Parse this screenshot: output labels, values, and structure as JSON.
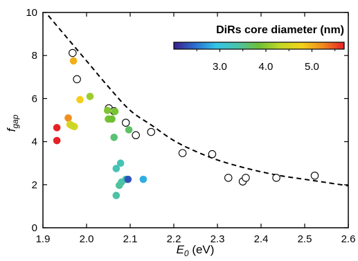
{
  "chart_data": {
    "type": "scatter",
    "x_axis": {
      "label_symbol": "E",
      "label_subscript": "0",
      "label_unit": " (eV)",
      "range": [
        1.9,
        2.6
      ],
      "ticks": [
        1.9,
        2.0,
        2.1,
        2.2,
        2.3,
        2.4,
        2.5,
        2.6
      ],
      "tick_labels": [
        "1.9",
        "2.0",
        "2.1",
        "2.2",
        "2.3",
        "2.4",
        "2.5",
        "2.6"
      ]
    },
    "y_axis": {
      "label_symbol": "f",
      "label_subscript": "gap",
      "range": [
        0,
        10
      ],
      "ticks": [
        0,
        2,
        4,
        6,
        8,
        10
      ],
      "tick_labels": [
        "0",
        "2",
        "4",
        "6",
        "8",
        "10"
      ]
    },
    "colorbar": {
      "title": "DiRs core diameter (nm)",
      "range": [
        2.0,
        5.7
      ],
      "ticks": [
        3.0,
        4.0,
        5.0
      ],
      "tick_labels": [
        "3.0",
        "4.0",
        "5.0"
      ],
      "colormap": [
        "#3b1f8a",
        "#2c6fd1",
        "#33c5e6",
        "#4bc3a8",
        "#6ec035",
        "#c2d826",
        "#f4d21a",
        "#f08a1e",
        "#e52126"
      ]
    },
    "fit_curve": [
      [
        1.9,
        10.15
      ],
      [
        1.95,
        8.95
      ],
      [
        2.0,
        7.75
      ],
      [
        2.05,
        6.55
      ],
      [
        2.1,
        5.45
      ],
      [
        2.15,
        4.75
      ],
      [
        2.2,
        4.05
      ],
      [
        2.25,
        3.55
      ],
      [
        2.3,
        3.15
      ],
      [
        2.35,
        2.85
      ],
      [
        2.4,
        2.6
      ],
      [
        2.45,
        2.4
      ],
      [
        2.5,
        2.25
      ],
      [
        2.55,
        2.1
      ],
      [
        2.6,
        1.95
      ]
    ],
    "open_markers": [
      [
        1.968,
        8.12
      ],
      [
        1.978,
        6.9
      ],
      [
        2.051,
        5.55
      ],
      [
        2.063,
        5.42
      ],
      [
        2.09,
        4.88
      ],
      [
        2.113,
        4.3
      ],
      [
        2.148,
        4.45
      ],
      [
        2.22,
        3.47
      ],
      [
        2.288,
        3.42
      ],
      [
        2.325,
        2.32
      ],
      [
        2.358,
        2.15
      ],
      [
        2.365,
        2.32
      ],
      [
        2.435,
        2.32
      ],
      [
        2.523,
        2.42
      ]
    ],
    "filled_markers": [
      {
        "x": 1.932,
        "y": 4.65,
        "size": 5.7
      },
      {
        "x": 1.932,
        "y": 4.05,
        "size": 5.7
      },
      {
        "x": 1.958,
        "y": 5.1,
        "size": 5.2
      },
      {
        "x": 1.97,
        "y": 7.75,
        "size": 5.0
      },
      {
        "x": 1.962,
        "y": 4.8,
        "size": 4.6
      },
      {
        "x": 1.972,
        "y": 4.7,
        "size": 4.5
      },
      {
        "x": 1.966,
        "y": 4.75,
        "size": 4.4
      },
      {
        "x": 1.985,
        "y": 5.95,
        "size": 4.8
      },
      {
        "x": 2.008,
        "y": 6.1,
        "size": 4.1
      },
      {
        "x": 2.048,
        "y": 5.45,
        "size": 3.95
      },
      {
        "x": 2.05,
        "y": 5.05,
        "size": 3.9
      },
      {
        "x": 2.058,
        "y": 5.05,
        "size": 3.85
      },
      {
        "x": 2.065,
        "y": 5.4,
        "size": 3.9
      },
      {
        "x": 2.063,
        "y": 4.2,
        "size": 3.6
      },
      {
        "x": 2.097,
        "y": 4.55,
        "size": 3.65
      },
      {
        "x": 2.068,
        "y": 2.75,
        "size": 3.3
      },
      {
        "x": 2.078,
        "y": 3.0,
        "size": 3.3
      },
      {
        "x": 2.068,
        "y": 1.5,
        "size": 3.4
      },
      {
        "x": 2.075,
        "y": 1.97,
        "size": 3.45
      },
      {
        "x": 2.08,
        "y": 2.12,
        "size": 3.4
      },
      {
        "x": 2.09,
        "y": 2.25,
        "size": 3.3
      },
      {
        "x": 2.095,
        "y": 2.25,
        "size": 2.3
      },
      {
        "x": 2.13,
        "y": 2.25,
        "size": 2.8
      }
    ]
  }
}
